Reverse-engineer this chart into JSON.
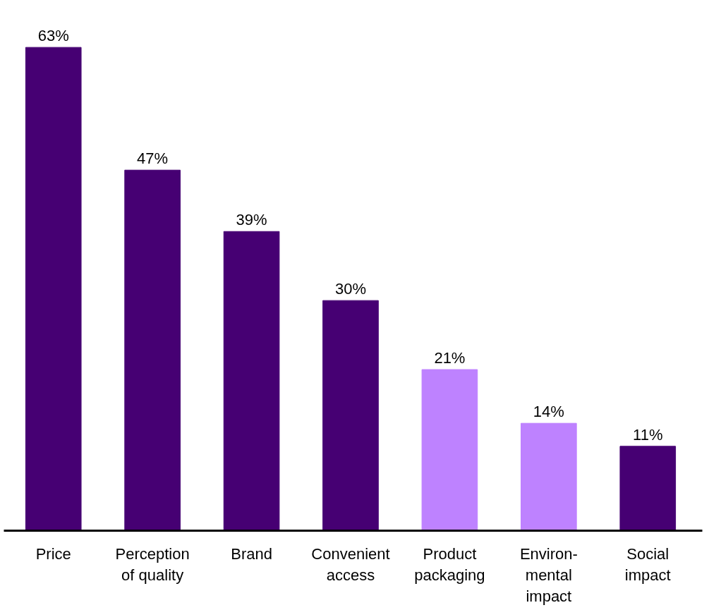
{
  "chart_data": {
    "type": "bar",
    "categories": [
      "Price",
      "Perception\nof quality",
      "Brand",
      "Convenient\naccess",
      "Product\npackaging",
      "Environ-\nmental\nimpact",
      "Social\nimpact"
    ],
    "values": [
      63,
      47,
      39,
      30,
      21,
      14,
      11
    ],
    "colors": [
      "#460073",
      "#460073",
      "#460073",
      "#460073",
      "#be82ff",
      "#be82ff",
      "#460073"
    ],
    "value_labels": [
      "63%",
      "47%",
      "39%",
      "30%",
      "21%",
      "14%",
      "11%"
    ],
    "grid": false
  }
}
